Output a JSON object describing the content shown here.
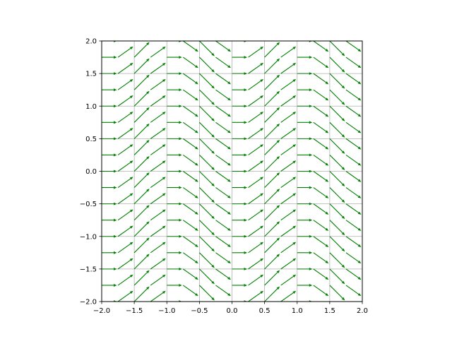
{
  "chart_data": {
    "type": "quiver",
    "title": "",
    "xlabel": "",
    "ylabel": "",
    "xlim": [
      -2.0,
      2.0
    ],
    "ylim": [
      -2.0,
      2.0
    ],
    "grid": true,
    "legend": "none",
    "arrow_color": "#008000",
    "xticks": [
      -2.0,
      -1.5,
      -1.0,
      -0.5,
      0.0,
      0.5,
      1.0,
      1.5,
      2.0
    ],
    "yticks": [
      -2.0,
      -1.5,
      -1.0,
      -0.5,
      0.0,
      0.5,
      1.0,
      1.5,
      2.0
    ],
    "xtick_labels": [
      "−2.0",
      "−1.5",
      "−1.0",
      "−0.5",
      "0.0",
      "0.5",
      "1.0",
      "1.5",
      "2.0"
    ],
    "ytick_labels": [
      "−2.0",
      "−1.5",
      "−1.0",
      "−0.5",
      "0.0",
      "0.5",
      "1.0",
      "1.5",
      "2.0"
    ],
    "grid_x": [
      -2.0,
      -1.75,
      -1.5,
      -1.25,
      -1.0,
      -0.75,
      -0.5,
      -0.25,
      0.0,
      0.25,
      0.5,
      0.75,
      1.0,
      1.25,
      1.5,
      1.75,
      2.0
    ],
    "grid_y": [
      -2.0,
      -1.75,
      -1.5,
      -1.25,
      -1.0,
      -0.75,
      -0.5,
      -0.25,
      0.0,
      0.25,
      0.5,
      0.75,
      1.0,
      1.25,
      1.5,
      1.75,
      2.0
    ],
    "field": {
      "u": "1",
      "v": "sin(pi * x)"
    }
  }
}
